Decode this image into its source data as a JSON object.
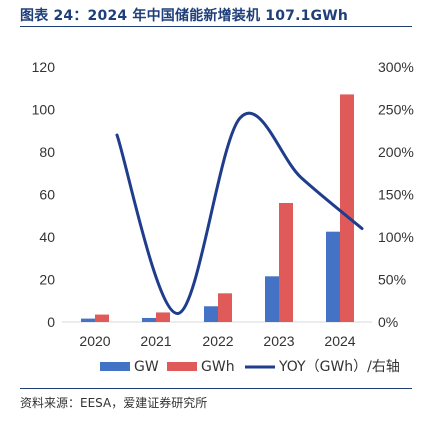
{
  "figure": {
    "title": "图表 24：2024 年中国储能新增装机 107.1GWh",
    "source": "资料来源：EESA，爱建证券研究所"
  },
  "colors": {
    "gw": "#4472c4",
    "gwh": "#e05a5a",
    "yoy": "#1f3d8c",
    "title": "#1f3f7a"
  },
  "chart_data": {
    "type": "bar",
    "categories": [
      "2020",
      "2021",
      "2022",
      "2023",
      "2024"
    ],
    "series": [
      {
        "name": "GW",
        "type": "bar",
        "axis": "left",
        "values": [
          1.6,
          1.9,
          7.4,
          21.5,
          42.5
        ]
      },
      {
        "name": "GWh",
        "type": "bar",
        "axis": "left",
        "values": [
          3.5,
          4.5,
          13.5,
          56.0,
          107.1
        ]
      },
      {
        "name": "YOY（GWh）/右轴",
        "type": "line",
        "axis": "right",
        "values": [
          220,
          10,
          240,
          170,
          110
        ]
      }
    ],
    "y_left": {
      "min": 0,
      "max": 120,
      "ticks": [
        0,
        20,
        40,
        60,
        80,
        100,
        120
      ]
    },
    "y_right": {
      "min": 0,
      "max": 300,
      "ticks": [
        "0%",
        "50%",
        "100%",
        "150%",
        "200%",
        "250%",
        "300%"
      ]
    },
    "grid": false,
    "legend": "bottom"
  }
}
